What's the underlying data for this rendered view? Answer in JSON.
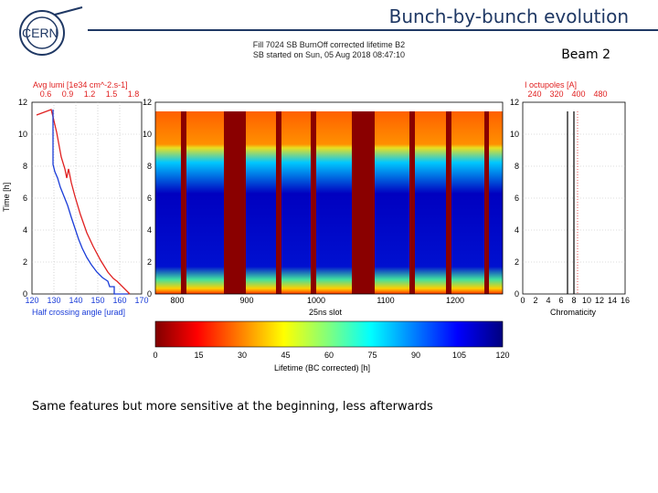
{
  "header": {
    "title": "Bunch-by-bunch evolution",
    "logo_text": "CERN",
    "beam_label": "Beam 2"
  },
  "figure": {
    "title_line1": "Fill 7024 SB BurnOff corrected lifetime B2",
    "title_line2": "SB started on Sun, 05 Aug 2018 08:47:10",
    "left_panel": {
      "top_axis_label": "Avg lumi [1e34 cm^-2.s-1]",
      "top_ticks": [
        "0.6",
        "0.9",
        "1.2",
        "1.5",
        "1.8"
      ],
      "bottom_ticks": [
        "120",
        "130",
        "140",
        "150",
        "160",
        "170"
      ],
      "xlabel": "Half crossing angle [urad]",
      "ylabel": "Time [h]",
      "y_ticks": [
        "0",
        "2",
        "4",
        "6",
        "8",
        "10",
        "12"
      ]
    },
    "heatmap": {
      "x_ticks": [
        "800",
        "900",
        "1000",
        "1100",
        "1200"
      ],
      "xlabel": "25ns slot",
      "y_ticks": [
        "0",
        "2",
        "4",
        "6",
        "8",
        "10",
        "12"
      ]
    },
    "colorbar": {
      "ticks": [
        "0",
        "15",
        "30",
        "45",
        "60",
        "75",
        "90",
        "105",
        "120"
      ],
      "label": "Lifetime (BC corrected) [h]"
    },
    "right_panel": {
      "top_axis_label": "I octupoles [A]",
      "top_ticks": [
        "240",
        "320",
        "400",
        "480"
      ],
      "bottom_ticks": [
        "0",
        "2",
        "4",
        "6",
        "8",
        "10",
        "12",
        "14",
        "16"
      ],
      "xlabel": "Chromaticity",
      "y_ticks": [
        "0",
        "2",
        "4",
        "6",
        "8",
        "10",
        "12"
      ]
    }
  },
  "note": "Same features but more sensitive at the beginning, less afterwards",
  "colors": {
    "title": "#1f3864",
    "red": "#e02020",
    "blue": "#1a3cd8",
    "darkred": "#800000"
  }
}
